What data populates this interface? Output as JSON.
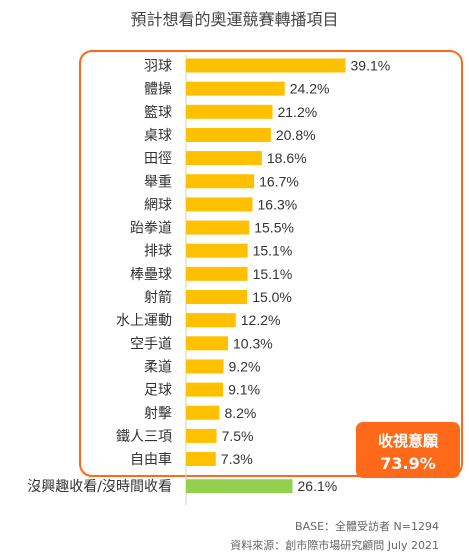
{
  "chart_data": {
    "type": "bar",
    "orientation": "horizontal",
    "title": "預計想看的奧運競賽轉播項目",
    "categories": [
      "羽球",
      "體操",
      "籃球",
      "桌球",
      "田徑",
      "舉重",
      "網球",
      "跆拳道",
      "排球",
      "棒壘球",
      "射箭",
      "水上運動",
      "空手道",
      "柔道",
      "足球",
      "射擊",
      "鐵人三項",
      "自由車",
      "沒興趣收看/沒時間收看"
    ],
    "values": [
      39.1,
      24.2,
      21.2,
      20.8,
      18.6,
      16.7,
      16.3,
      15.5,
      15.1,
      15.1,
      15.0,
      12.2,
      10.3,
      9.2,
      9.1,
      8.2,
      7.5,
      7.3,
      26.1
    ],
    "value_labels": [
      "39.1%",
      "24.2%",
      "21.2%",
      "20.8%",
      "18.6%",
      "16.7%",
      "16.3%",
      "15.5%",
      "15.1%",
      "15.1%",
      "15.0%",
      "12.2%",
      "10.3%",
      "9.2%",
      "9.1%",
      "8.2%",
      "7.5%",
      "7.3%",
      "26.1%"
    ],
    "xlim": [
      0,
      46
    ],
    "grid": false,
    "legend": "none",
    "colors": {
      "bar": "#ffc000",
      "bar_negative": "#92d050",
      "highlight_box": "#ff6a1a",
      "callout_bg": "#ff6a1a"
    }
  },
  "callout": {
    "line1": "收視意願",
    "line2": "73.9%"
  },
  "footer": {
    "base": "BASE：全體受訪者 N=1294",
    "source": "資料來源：創市際市場研究顧問 July 2021"
  }
}
